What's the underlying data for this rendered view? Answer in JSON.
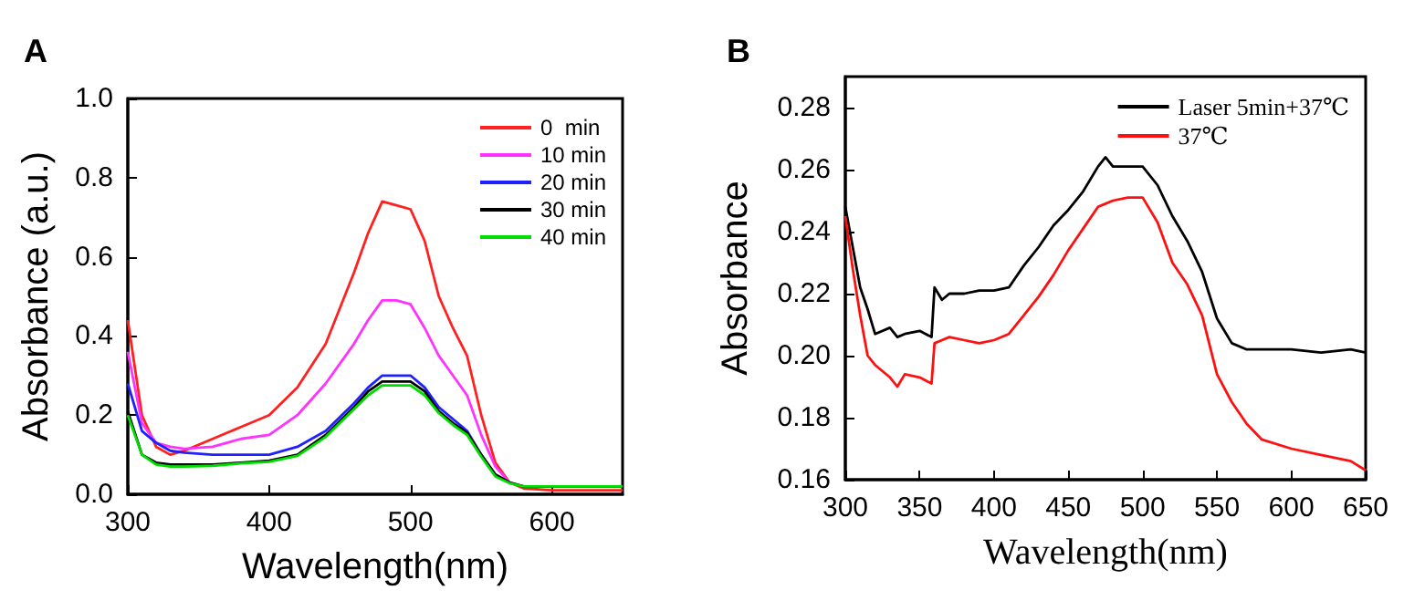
{
  "chart_data": [
    {
      "type": "line",
      "title": "A",
      "xlabel": "Wavelength(nm)",
      "ylabel": "Absorbance (a.u.)",
      "xlim": [
        300,
        650
      ],
      "xticks": [
        300,
        400,
        500,
        600
      ],
      "ylim": [
        0,
        1.0
      ],
      "yticks": [
        {
          "value": 0,
          "label": "0.0"
        },
        {
          "value": 0.2,
          "label": "0.2"
        },
        {
          "value": 0.4,
          "label": "0.4"
        },
        {
          "value": 0.6,
          "label": "0.6"
        },
        {
          "value": 0.8,
          "label": "0.8"
        },
        {
          "value": 1.0,
          "label": "1.0"
        }
      ],
      "legend": "top right",
      "grid": false,
      "marker": "none",
      "line_style": "solid",
      "x": [
        300,
        310,
        320,
        330,
        340,
        360,
        380,
        400,
        420,
        440,
        460,
        470,
        480,
        490,
        500,
        510,
        520,
        530,
        540,
        550,
        560,
        570,
        580,
        600,
        650
      ],
      "series": [
        {
          "name": "0  min",
          "color": "#ff2020",
          "values": [
            0.44,
            0.2,
            0.12,
            0.1,
            0.11,
            0.14,
            0.17,
            0.2,
            0.27,
            0.38,
            0.56,
            0.66,
            0.74,
            0.73,
            0.72,
            0.64,
            0.5,
            0.42,
            0.35,
            0.2,
            0.08,
            0.03,
            0.015,
            0.01,
            0.01
          ]
        },
        {
          "name": "10 min",
          "color": "#ff33ff",
          "values": [
            0.36,
            0.18,
            0.13,
            0.12,
            0.115,
            0.12,
            0.14,
            0.15,
            0.2,
            0.28,
            0.38,
            0.44,
            0.49,
            0.49,
            0.48,
            0.42,
            0.35,
            0.3,
            0.25,
            0.15,
            0.07,
            0.03,
            0.02,
            null,
            null
          ]
        },
        {
          "name": "20 min",
          "color": "#2020ff",
          "values": [
            0.28,
            0.16,
            0.13,
            0.11,
            0.105,
            0.1,
            0.1,
            0.1,
            0.12,
            0.16,
            0.23,
            0.27,
            0.3,
            0.3,
            0.3,
            0.27,
            0.22,
            0.19,
            0.16,
            0.1,
            0.05,
            null,
            null,
            null,
            null
          ]
        },
        {
          "name": "30 min",
          "color": "#000000",
          "values": [
            0.21,
            0.1,
            0.08,
            0.075,
            0.075,
            0.075,
            0.08,
            0.085,
            0.1,
            0.15,
            0.22,
            0.26,
            0.285,
            0.285,
            0.285,
            0.26,
            0.21,
            0.18,
            0.155,
            0.1,
            0.05,
            0.03,
            0.02,
            0.02,
            0.02
          ]
        },
        {
          "name": "40 min",
          "color": "#00dd00",
          "values": [
            0.2,
            0.1,
            0.075,
            0.07,
            0.07,
            0.072,
            0.078,
            0.082,
            0.097,
            0.145,
            0.215,
            0.25,
            0.275,
            0.275,
            0.275,
            0.25,
            0.205,
            0.175,
            0.15,
            0.095,
            0.045,
            0.028,
            0.02,
            0.02,
            0.02
          ]
        }
      ]
    },
    {
      "type": "line",
      "title": "B",
      "xlabel": "Wavelength(nm)",
      "ylabel": "Absorbance",
      "xlim": [
        300,
        650
      ],
      "xticks": [
        300,
        350,
        400,
        450,
        500,
        550,
        600,
        650
      ],
      "ylim": [
        0.16,
        0.29
      ],
      "yticks": [
        {
          "value": 0.16,
          "label": "0.16"
        },
        {
          "value": 0.18,
          "label": "0.18"
        },
        {
          "value": 0.2,
          "label": "0.20"
        },
        {
          "value": 0.22,
          "label": "0.22"
        },
        {
          "value": 0.24,
          "label": "0.24"
        },
        {
          "value": 0.26,
          "label": "0.26"
        },
        {
          "value": 0.28,
          "label": "0.28"
        }
      ],
      "legend": "top right",
      "grid": false,
      "marker": "none",
      "line_style": "solid",
      "x": [
        300,
        305,
        310,
        315,
        320,
        330,
        335,
        340,
        350,
        358,
        360,
        365,
        370,
        380,
        390,
        400,
        410,
        420,
        430,
        440,
        450,
        460,
        470,
        475,
        480,
        490,
        500,
        510,
        520,
        530,
        540,
        550,
        560,
        570,
        580,
        600,
        620,
        640,
        650
      ],
      "series": [
        {
          "name": "Laser 5min+37℃",
          "color": "#000000",
          "values": [
            0.248,
            0.235,
            0.222,
            0.215,
            0.207,
            0.209,
            0.206,
            0.207,
            0.208,
            0.206,
            0.222,
            0.218,
            0.22,
            0.22,
            0.221,
            0.221,
            0.222,
            0.229,
            0.235,
            0.242,
            0.247,
            0.253,
            0.261,
            0.264,
            0.261,
            0.261,
            0.261,
            0.255,
            0.245,
            0.237,
            0.227,
            0.212,
            0.204,
            0.202,
            0.202,
            0.202,
            0.201,
            0.202,
            0.201
          ]
        },
        {
          "name": "37℃",
          "color": "#ff1010",
          "values": [
            0.245,
            0.228,
            0.213,
            0.2,
            0.197,
            0.193,
            0.19,
            0.194,
            0.193,
            0.191,
            0.204,
            0.205,
            0.206,
            0.205,
            0.204,
            0.205,
            0.207,
            0.213,
            0.219,
            0.226,
            0.234,
            0.241,
            0.248,
            0.249,
            0.25,
            0.251,
            0.251,
            0.243,
            0.23,
            0.223,
            0.213,
            0.194,
            0.185,
            0.178,
            0.173,
            0.17,
            0.168,
            0.166,
            0.163
          ]
        }
      ]
    }
  ]
}
